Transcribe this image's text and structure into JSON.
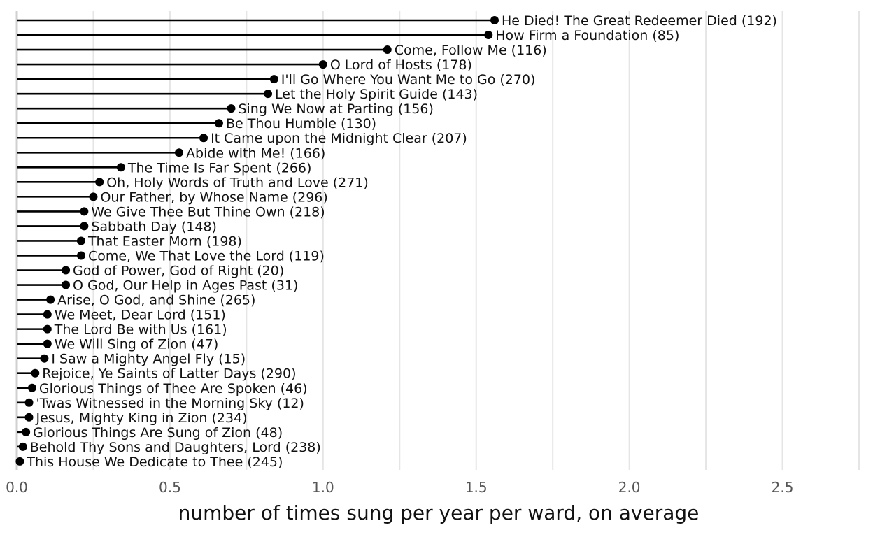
{
  "chart_data": {
    "type": "lollipop",
    "xlabel": "number of times sung per year per ward, on average",
    "xlim": [
      0,
      2.75
    ],
    "xticks": [
      0.0,
      0.5,
      1.0,
      1.5,
      2.0,
      2.5
    ],
    "xtick_labels": [
      "0.0",
      "0.5",
      "1.0",
      "1.5",
      "2.0",
      "2.5"
    ],
    "grid": "vertical",
    "colors": {
      "mark": "#000000",
      "grid": "#e5e5e5",
      "axis_line": "#d0d0d0"
    },
    "items": [
      {
        "label": "He Died! The Great Redeemer Died (192)",
        "value": 1.56
      },
      {
        "label": "How Firm a Foundation (85)",
        "value": 1.54
      },
      {
        "label": "Come, Follow Me (116)",
        "value": 1.21
      },
      {
        "label": "O Lord of Hosts (178)",
        "value": 1.0
      },
      {
        "label": "I'll Go Where You Want Me to Go (270)",
        "value": 0.84
      },
      {
        "label": "Let the Holy Spirit Guide (143)",
        "value": 0.82
      },
      {
        "label": "Sing We Now at Parting (156)",
        "value": 0.7
      },
      {
        "label": "Be Thou Humble (130)",
        "value": 0.66
      },
      {
        "label": "It Came upon the Midnight Clear (207)",
        "value": 0.61
      },
      {
        "label": "Abide with Me! (166)",
        "value": 0.53
      },
      {
        "label": "The Time Is Far Spent (266)",
        "value": 0.34
      },
      {
        "label": "Oh, Holy Words of Truth and Love (271)",
        "value": 0.27
      },
      {
        "label": "Our Father, by Whose Name (296)",
        "value": 0.25
      },
      {
        "label": "We Give Thee But Thine Own (218)",
        "value": 0.22
      },
      {
        "label": "Sabbath Day (148)",
        "value": 0.22
      },
      {
        "label": "That Easter Morn (198)",
        "value": 0.21
      },
      {
        "label": "Come, We That Love the Lord (119)",
        "value": 0.21
      },
      {
        "label": "God of Power, God of Right (20)",
        "value": 0.16
      },
      {
        "label": "O God, Our Help in Ages Past (31)",
        "value": 0.16
      },
      {
        "label": "Arise, O God, and Shine (265)",
        "value": 0.11
      },
      {
        "label": "We Meet, Dear Lord (151)",
        "value": 0.1
      },
      {
        "label": "The Lord Be with Us (161)",
        "value": 0.1
      },
      {
        "label": "We Will Sing of Zion (47)",
        "value": 0.1
      },
      {
        "label": "I Saw a Mighty Angel Fly (15)",
        "value": 0.09
      },
      {
        "label": "Rejoice, Ye Saints of Latter Days (290)",
        "value": 0.06
      },
      {
        "label": "Glorious Things of Thee Are Spoken (46)",
        "value": 0.05
      },
      {
        "label": "'Twas Witnessed in the Morning Sky (12)",
        "value": 0.04
      },
      {
        "label": "Jesus, Mighty King in Zion (234)",
        "value": 0.04
      },
      {
        "label": "Glorious Things Are Sung of Zion (48)",
        "value": 0.03
      },
      {
        "label": "Behold Thy Sons and Daughters, Lord (238)",
        "value": 0.02
      },
      {
        "label": "This House We Dedicate to Thee (245)",
        "value": 0.01
      }
    ]
  }
}
